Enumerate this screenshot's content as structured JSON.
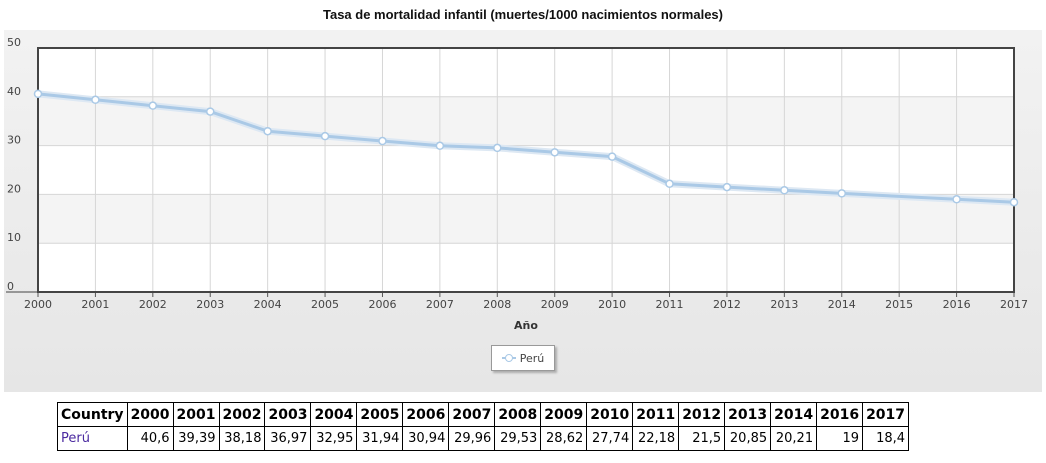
{
  "chart_data": {
    "type": "line",
    "title": "Tasa de mortalidad infantil (muertes/1000 nacimientos normales)",
    "xlabel": "Año",
    "ylabel": "",
    "x": [
      2000,
      2001,
      2002,
      2003,
      2004,
      2005,
      2006,
      2007,
      2008,
      2009,
      2010,
      2011,
      2012,
      2013,
      2014,
      2016,
      2017
    ],
    "x_ticks": [
      2000,
      2001,
      2002,
      2003,
      2004,
      2005,
      2006,
      2007,
      2008,
      2009,
      2010,
      2011,
      2012,
      2013,
      2014,
      2015,
      2016,
      2017
    ],
    "xlim": [
      2000,
      2017
    ],
    "ylim": [
      0,
      50
    ],
    "y_ticks": [
      0,
      10,
      20,
      30,
      40,
      50
    ],
    "grid": true,
    "legend_position": "bottom-center",
    "series": [
      {
        "name": "Perú",
        "color": "#aac9e6",
        "values": [
          40.6,
          39.39,
          38.18,
          36.97,
          32.95,
          31.94,
          30.94,
          29.96,
          29.53,
          28.62,
          27.74,
          22.18,
          21.5,
          20.85,
          20.21,
          19,
          18.4
        ]
      }
    ]
  },
  "legend": {
    "label": "Perú"
  },
  "table": {
    "headers": [
      "Country",
      "2000",
      "2001",
      "2002",
      "2003",
      "2004",
      "2005",
      "2006",
      "2007",
      "2008",
      "2009",
      "2010",
      "2011",
      "2012",
      "2013",
      "2014",
      "2016",
      "2017"
    ],
    "rows": [
      [
        "Perú",
        "40,6",
        "39,39",
        "38,18",
        "36,97",
        "32,95",
        "31,94",
        "30,94",
        "29,96",
        "29,53",
        "28,62",
        "27,74",
        "22,18",
        "21,5",
        "20,85",
        "20,21",
        "19",
        "18,4"
      ]
    ]
  }
}
